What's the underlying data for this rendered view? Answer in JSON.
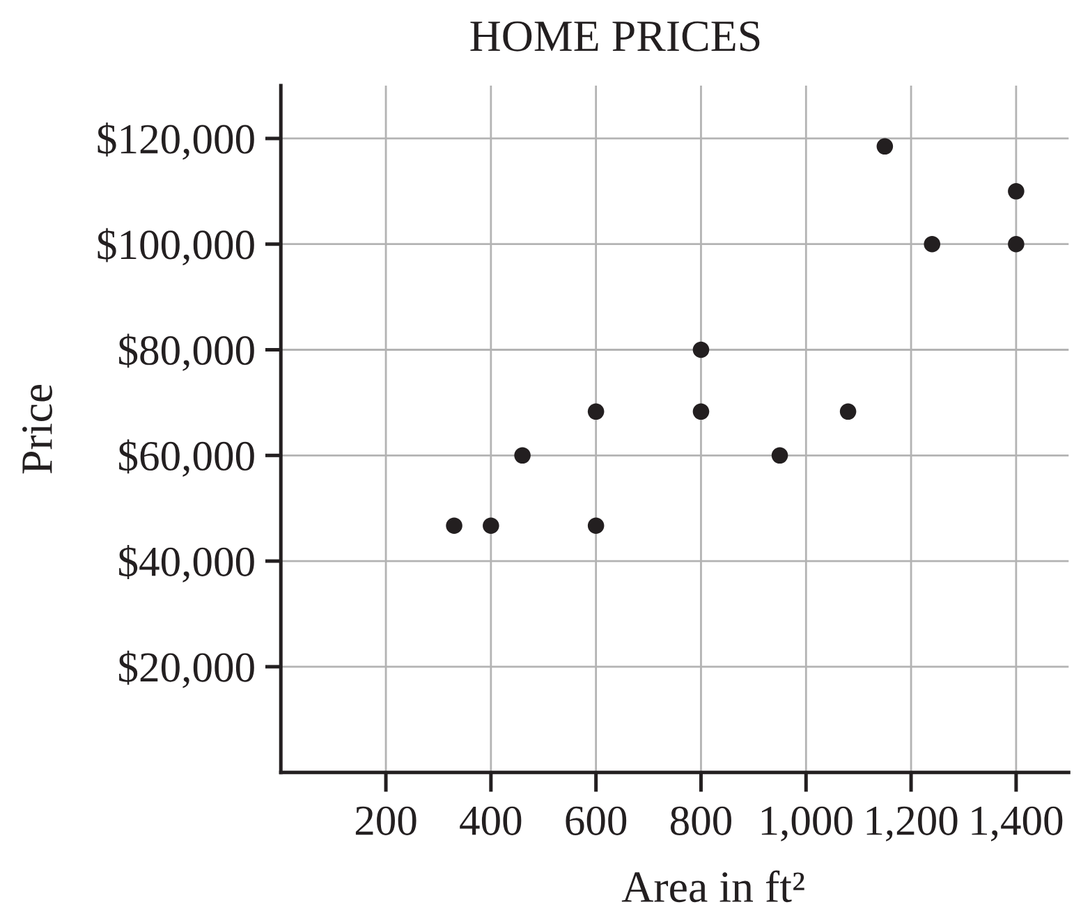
{
  "chart_data": {
    "type": "scatter",
    "title": "HOME PRICES",
    "xlabel": "Area in ft²",
    "ylabel": "Price",
    "series": [
      {
        "color": "#231f20",
        "x": [
          330,
          400,
          460,
          600,
          600,
          800,
          800,
          950,
          1080,
          1150,
          1240,
          1400,
          1400
        ],
        "values": [
          46700,
          46700,
          60000,
          68300,
          46700,
          80000,
          68300,
          60000,
          68300,
          118500,
          100000,
          110000,
          100000
        ]
      }
    ],
    "xlim": [
      0,
      1500
    ],
    "ylim": [
      0,
      130000
    ],
    "xticks": [
      200,
      400,
      600,
      800,
      {
        "value": 1000,
        "label": "1,000"
      },
      {
        "value": 1200,
        "label": "1,200"
      },
      {
        "value": 1400,
        "label": "1,400"
      }
    ],
    "yticks": [
      {
        "value": 20000,
        "label": "$20,000"
      },
      {
        "value": 40000,
        "label": "$40,000"
      },
      {
        "value": 60000,
        "label": "$60,000"
      },
      {
        "value": 80000,
        "label": "$80,000"
      },
      {
        "value": 100000,
        "label": "$100,000"
      },
      {
        "value": 120000,
        "label": "$120,000"
      }
    ],
    "grid": true,
    "marker": "circle"
  }
}
